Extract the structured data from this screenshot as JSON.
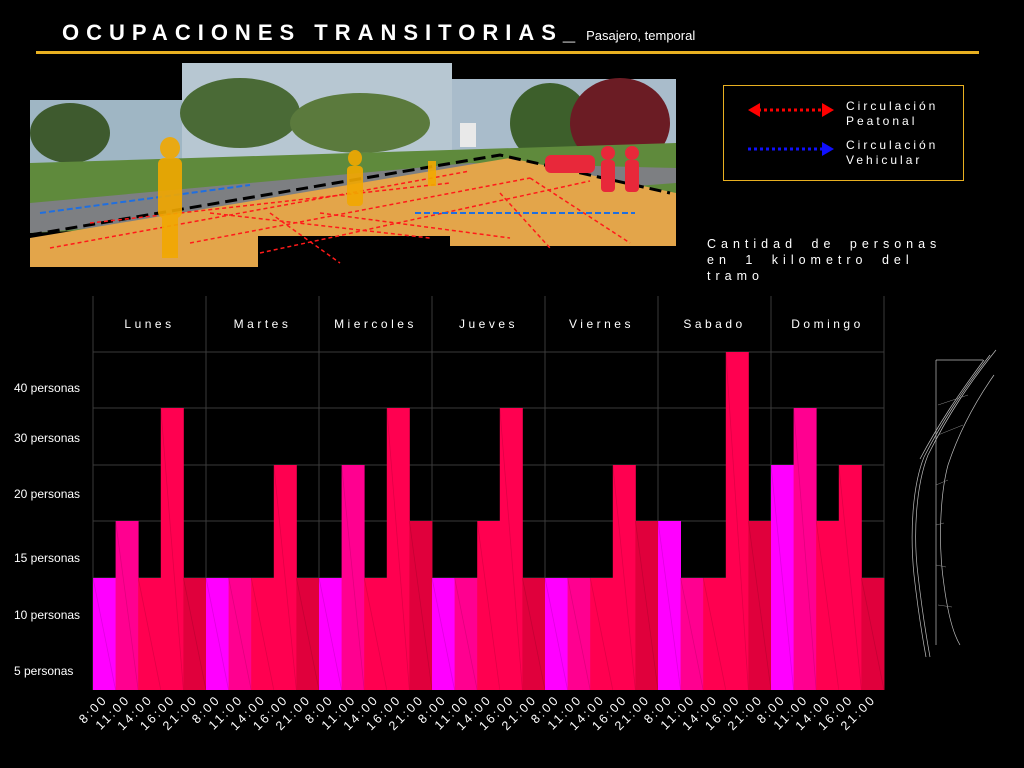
{
  "header": {
    "title": "OCUPACIONES TRANSITORIAS_",
    "subtitle": "Pasajero, temporal"
  },
  "legend": {
    "items": [
      {
        "label": "Circulación Peatonal",
        "color": "#ff0000"
      },
      {
        "label": "Circulación Vehicular",
        "color": "#1010ff"
      }
    ]
  },
  "caption": "Cantidad de personas en 1 kilometro del tramo",
  "colors": {
    "accent_line": "#e8b021",
    "bar_magenta": "#ff00ff",
    "bar_pink": "#ff0090",
    "bar_red": "#ff0050",
    "bar_crimson": "#e0003c"
  },
  "chart_data": {
    "type": "bar",
    "title": "",
    "y_tick_labels": [
      "5 personas",
      "10 personas",
      "15 personas",
      "20 personas",
      "30 personas",
      "40 personas"
    ],
    "days": [
      "Lunes",
      "Martes",
      "Miercoles",
      "Jueves",
      "Viernes",
      "Sabado",
      "Domingo"
    ],
    "times": [
      "8:00",
      "11:00",
      "14:00",
      "16:00",
      "21:00"
    ],
    "series": [
      {
        "day": "Lunes",
        "values": [
          15,
          20,
          10,
          40,
          15
        ]
      },
      {
        "day": "Martes",
        "values": [
          15,
          15,
          15,
          30,
          15
        ]
      },
      {
        "day": "Miercoles",
        "values": [
          10,
          30,
          15,
          40,
          20
        ]
      },
      {
        "day": "Jueves",
        "values": [
          15,
          15,
          20,
          40,
          10
        ]
      },
      {
        "day": "Viernes",
        "values": [
          15,
          10,
          15,
          30,
          20
        ]
      },
      {
        "day": "Sabado",
        "values": [
          20,
          15,
          15,
          50,
          20
        ]
      },
      {
        "day": "Domingo",
        "values": [
          30,
          40,
          20,
          30,
          15
        ]
      }
    ],
    "grid": true,
    "legend_position": "top-right"
  }
}
